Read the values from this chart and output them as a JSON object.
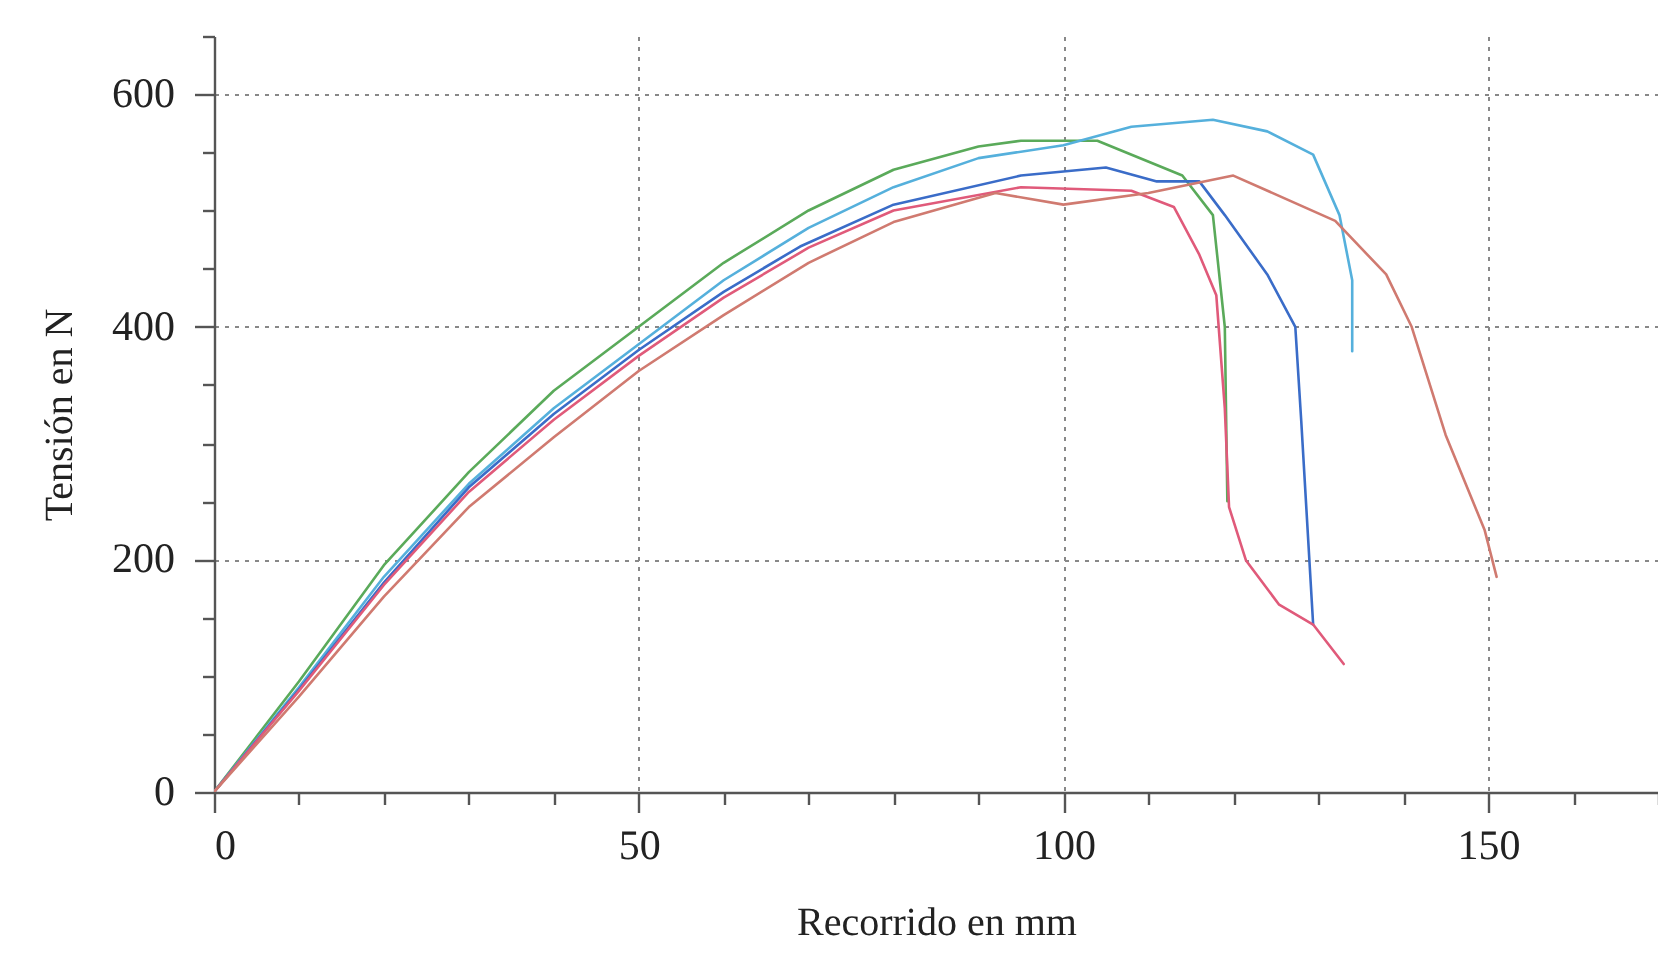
{
  "chart_data": {
    "type": "line",
    "xlabel": "Recorrido en mm",
    "ylabel": "Tensión en N",
    "xlim": [
      0,
      170
    ],
    "ylim": [
      0,
      650
    ],
    "xticks": [
      0,
      {
        "value": 10,
        "label": null
      },
      {
        "value": 20,
        "label": null
      },
      {
        "value": 30,
        "label": null
      },
      {
        "value": 40,
        "label": null
      },
      50,
      {
        "value": 60,
        "label": null
      },
      {
        "value": 70,
        "label": null
      },
      {
        "value": 80,
        "label": null
      },
      {
        "value": 90,
        "label": null
      },
      100,
      {
        "value": 110,
        "label": null
      },
      {
        "value": 120,
        "label": null
      },
      {
        "value": 130,
        "label": null
      },
      {
        "value": 140,
        "label": null
      },
      150,
      {
        "value": 160,
        "label": null
      },
      {
        "value": 170,
        "label": null
      }
    ],
    "yticks": [
      0,
      {
        "value": 50,
        "label": null
      },
      {
        "value": 100,
        "label": null
      },
      {
        "value": 150,
        "label": null
      },
      200,
      {
        "value": 250,
        "label": null
      },
      {
        "value": 300,
        "label": null
      },
      {
        "value": 350,
        "label": null
      },
      400,
      {
        "value": 450,
        "label": null
      },
      {
        "value": 500,
        "label": null
      },
      {
        "value": 550,
        "label": null
      },
      600,
      {
        "value": 650,
        "label": null
      }
    ],
    "grid": true,
    "marker": "none",
    "line_style": "solid",
    "series": [
      {
        "color": "#5aaa5a",
        "x": [
          0,
          10,
          20,
          30,
          40,
          50,
          60,
          70,
          80,
          90,
          95,
          104,
          114,
          117.6,
          119,
          119.3
        ],
        "values": [
          0,
          95,
          195,
          275,
          345,
          400,
          455,
          500,
          535,
          555,
          560,
          560,
          530,
          496,
          400,
          250
        ]
      },
      {
        "color": "#55b0dc",
        "x": [
          0,
          10,
          20,
          30,
          40,
          50,
          60,
          70,
          80,
          90,
          100,
          108,
          117.6,
          124,
          129.4,
          132.5,
          134,
          134
        ],
        "values": [
          0,
          90,
          185,
          265,
          330,
          385,
          440,
          485,
          520,
          545,
          556,
          572,
          578,
          568,
          548,
          496,
          440,
          379
        ]
      },
      {
        "color": "#3a6cc8",
        "x": [
          0,
          10,
          20,
          30,
          40,
          50,
          60,
          69,
          80,
          95,
          105,
          111,
          116,
          119,
          124,
          127.3,
          128,
          129.4
        ],
        "values": [
          0,
          88,
          180,
          262,
          325,
          380,
          430,
          469,
          505,
          530,
          537,
          525,
          525,
          496,
          445,
          400,
          319,
          144
        ]
      },
      {
        "color": "#e05a7a",
        "x": [
          0,
          10,
          20,
          30,
          40,
          50,
          60,
          70,
          80,
          95,
          108,
          113,
          116,
          118,
          119,
          119.5,
          121.5,
          125.4,
          129.4,
          133
        ],
        "values": [
          0,
          87,
          178,
          258,
          320,
          375,
          425,
          468,
          500,
          520,
          517,
          503,
          462,
          427,
          330,
          245,
          199,
          161,
          144,
          110
        ]
      },
      {
        "color": "#d07a70",
        "x": [
          0,
          10,
          20,
          30,
          40,
          50,
          60,
          70,
          80,
          92,
          100,
          110,
          120,
          132,
          138,
          141,
          145,
          149.6,
          151
        ],
        "values": [
          0,
          82,
          168,
          245,
          305,
          362,
          410,
          455,
          490,
          515,
          505,
          515,
          530,
          491,
          445,
          400,
          307,
          225,
          185
        ]
      }
    ]
  }
}
